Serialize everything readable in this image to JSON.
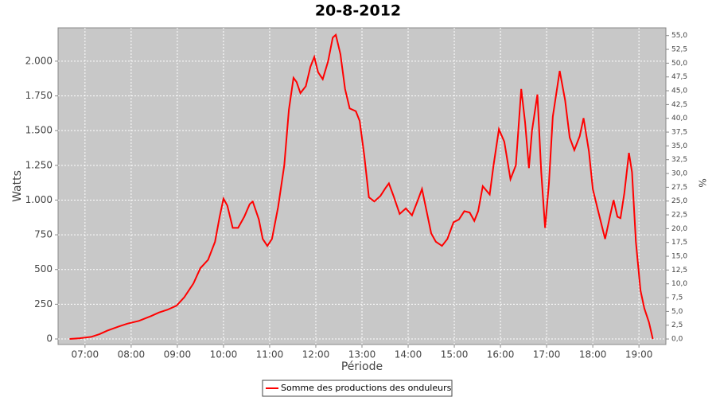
{
  "chart_data": {
    "type": "line",
    "title": "20-8-2012",
    "xlabel": "Période",
    "ylabel": "Watts",
    "y2label": "%",
    "x": [
      "06:40",
      "06:53",
      "07:08",
      "07:19",
      "07:29",
      "07:44",
      "07:55",
      "08:10",
      "08:26",
      "08:36",
      "08:47",
      "08:59",
      "09:09",
      "09:21",
      "09:30",
      "09:40",
      "09:49",
      "09:55",
      "10:00",
      "10:05",
      "10:12",
      "10:19",
      "10:27",
      "10:34",
      "10:38",
      "10:46",
      "10:51",
      "10:57",
      "11:03",
      "11:11",
      "11:19",
      "11:25",
      "11:31",
      "11:35",
      "11:40",
      "11:47",
      "11:53",
      "11:58",
      "12:03",
      "12:09",
      "12:16",
      "12:22",
      "12:26",
      "12:32",
      "12:38",
      "12:44",
      "12:52",
      "12:57",
      "13:03",
      "13:09",
      "13:16",
      "13:24",
      "13:31",
      "13:35",
      "13:41",
      "13:49",
      "13:57",
      "14:05",
      "14:12",
      "14:18",
      "14:24",
      "14:30",
      "14:36",
      "14:44",
      "14:51",
      "14:59",
      "15:06",
      "15:13",
      "15:20",
      "15:26",
      "15:31",
      "15:37",
      "15:46",
      "15:51",
      "15:58",
      "16:05",
      "16:13",
      "16:20",
      "16:27",
      "16:32",
      "16:37",
      "16:41",
      "16:48",
      "16:53",
      "16:58",
      "17:03",
      "17:08",
      "17:17",
      "17:24",
      "17:30",
      "17:36",
      "17:43",
      "17:48",
      "17:55",
      "18:00",
      "18:07",
      "18:16",
      "18:23",
      "18:27",
      "18:32",
      "18:36",
      "18:41",
      "18:47",
      "18:51",
      "18:56",
      "19:02",
      "19:07",
      "19:13",
      "19:18"
    ],
    "series": [
      {
        "name": "Somme des productions des onduleurs",
        "color": "#ff0000",
        "values": [
          0,
          5,
          15,
          35,
          60,
          90,
          110,
          130,
          165,
          190,
          210,
          240,
          300,
          400,
          510,
          570,
          700,
          880,
          1010,
          960,
          800,
          800,
          880,
          970,
          990,
          860,
          720,
          670,
          720,
          950,
          1250,
          1650,
          1880,
          1850,
          1770,
          1820,
          1960,
          2030,
          1920,
          1870,
          2000,
          2170,
          2190,
          2050,
          1800,
          1660,
          1640,
          1570,
          1320,
          1020,
          990,
          1030,
          1090,
          1120,
          1030,
          900,
          940,
          890,
          990,
          1080,
          920,
          760,
          700,
          670,
          720,
          840,
          860,
          920,
          910,
          850,
          920,
          1100,
          1040,
          1250,
          1510,
          1420,
          1150,
          1250,
          1800,
          1560,
          1230,
          1500,
          1760,
          1200,
          800,
          1120,
          1600,
          1930,
          1720,
          1450,
          1360,
          1460,
          1590,
          1350,
          1080,
          920,
          720,
          900,
          1000,
          880,
          870,
          1050,
          1340,
          1200,
          700,
          350,
          220,
          120,
          0
        ]
      }
    ],
    "xlim": [
      "06:25",
      "19:35"
    ],
    "xticks": [
      "07:00",
      "08:00",
      "09:00",
      "10:00",
      "11:00",
      "12:00",
      "13:00",
      "14:00",
      "15:00",
      "16:00",
      "17:00",
      "18:00",
      "19:00"
    ],
    "ylim": [
      -40,
      2240
    ],
    "yticks": [
      0,
      250,
      500,
      750,
      {
        "value": 1000,
        "label": "1.000"
      },
      {
        "value": 1250,
        "label": "1.250"
      },
      {
        "value": 1500,
        "label": "1.500"
      },
      {
        "value": 1750,
        "label": "1.750"
      },
      {
        "value": 2000,
        "label": "2.000"
      }
    ],
    "y2lim": [
      -1.0,
      56.4
    ],
    "y2ticks": [
      {
        "value": 0,
        "label": "0,0"
      },
      {
        "value": 2.5,
        "label": "2,5"
      },
      {
        "value": 5,
        "label": "5,0"
      },
      {
        "value": 7.5,
        "label": "7,5"
      },
      {
        "value": 10,
        "label": "10,0"
      },
      {
        "value": 12.5,
        "label": "12,5"
      },
      {
        "value": 15,
        "label": "15,0"
      },
      {
        "value": 17.5,
        "label": "17,5"
      },
      {
        "value": 20,
        "label": "20,0"
      },
      {
        "value": 22.5,
        "label": "22,5"
      },
      {
        "value": 25,
        "label": "25,0"
      },
      {
        "value": 27.5,
        "label": "27,5"
      },
      {
        "value": 30,
        "label": "30,0"
      },
      {
        "value": 32.5,
        "label": "32,5"
      },
      {
        "value": 35,
        "label": "35,0"
      },
      {
        "value": 37.5,
        "label": "37,5"
      },
      {
        "value": 40,
        "label": "40,0"
      },
      {
        "value": 42.5,
        "label": "42,5"
      },
      {
        "value": 45,
        "label": "45,0"
      },
      {
        "value": 47.5,
        "label": "47,5"
      },
      {
        "value": 50,
        "label": "50,0"
      },
      {
        "value": 52.5,
        "label": "52,5"
      },
      {
        "value": 55,
        "label": "55,0"
      }
    ],
    "grid": true
  }
}
